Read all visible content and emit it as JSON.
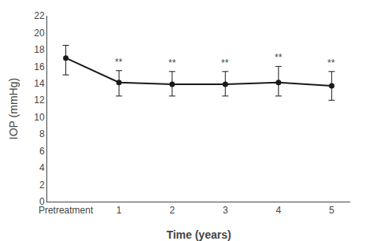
{
  "chart_data": {
    "type": "line",
    "categories": [
      "Pretreatment",
      "1",
      "2",
      "3",
      "4",
      "5"
    ],
    "series": [
      {
        "values": [
          17.0,
          14.1,
          13.9,
          13.9,
          14.1,
          13.7
        ],
        "error_upper": [
          1.5,
          1.4,
          1.5,
          1.5,
          1.9,
          1.7
        ],
        "error_lower": [
          2.0,
          1.6,
          1.4,
          1.4,
          1.6,
          1.7
        ],
        "color": "#1a1a1a",
        "marker": "circle",
        "line_style": "solid"
      }
    ],
    "annotations": [
      {
        "category": "1",
        "text": "**"
      },
      {
        "category": "2",
        "text": "**"
      },
      {
        "category": "3",
        "text": "**"
      },
      {
        "category": "4",
        "text": "**"
      },
      {
        "category": "5",
        "text": "**"
      }
    ],
    "xlabel": "Time (years)",
    "ylabel": "IOP (mmHg)",
    "ylim": [
      0,
      22
    ],
    "yticks": [
      0,
      2,
      4,
      6,
      8,
      10,
      12,
      14,
      16,
      18,
      20,
      22
    ],
    "grid": false
  }
}
